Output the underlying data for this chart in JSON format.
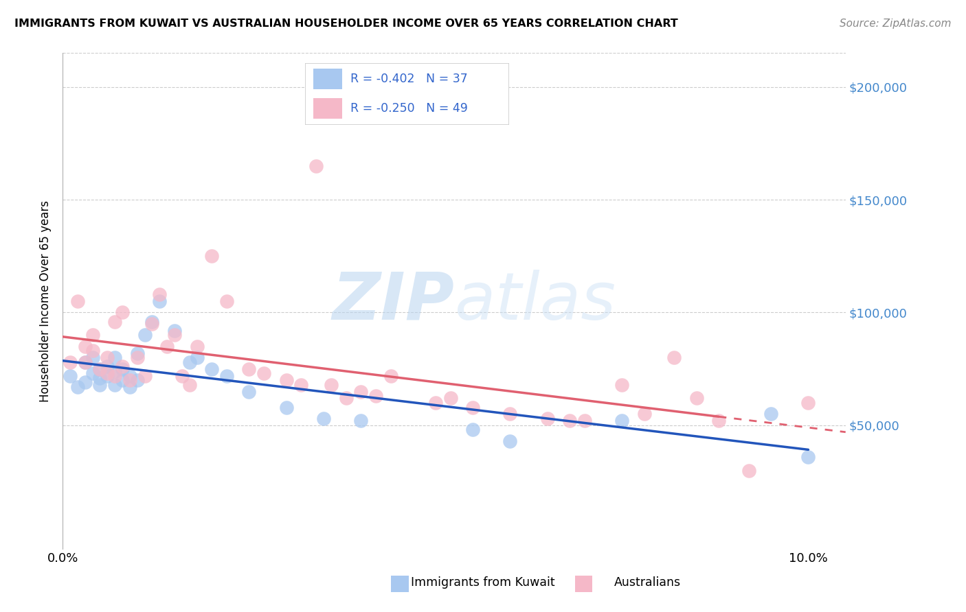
{
  "title": "IMMIGRANTS FROM KUWAIT VS AUSTRALIAN HOUSEHOLDER INCOME OVER 65 YEARS CORRELATION CHART",
  "source": "Source: ZipAtlas.com",
  "ylabel": "Householder Income Over 65 years",
  "xlim": [
    0.0,
    0.105
  ],
  "ylim": [
    -5000,
    215000
  ],
  "yticks": [
    0,
    50000,
    100000,
    150000,
    200000
  ],
  "xticks": [
    0.0,
    0.02,
    0.04,
    0.06,
    0.08,
    0.1
  ],
  "blue_color": "#A8C8F0",
  "pink_color": "#F5B8C8",
  "blue_line_color": "#2255BB",
  "pink_line_color": "#E06070",
  "blue_R": -0.402,
  "blue_N": 37,
  "pink_R": -0.25,
  "pink_N": 49,
  "legend_text_color": "#3366CC",
  "watermark_color": "#C8DFF5",
  "blue_scatter_x": [
    0.001,
    0.002,
    0.003,
    0.003,
    0.004,
    0.004,
    0.005,
    0.005,
    0.005,
    0.006,
    0.006,
    0.007,
    0.007,
    0.007,
    0.008,
    0.008,
    0.009,
    0.009,
    0.01,
    0.01,
    0.011,
    0.012,
    0.013,
    0.015,
    0.017,
    0.018,
    0.02,
    0.022,
    0.025,
    0.03,
    0.035,
    0.04,
    0.055,
    0.06,
    0.075,
    0.095,
    0.1
  ],
  "blue_scatter_y": [
    72000,
    67000,
    78000,
    69000,
    80000,
    73000,
    75000,
    71000,
    68000,
    76000,
    72000,
    80000,
    74000,
    68000,
    75000,
    70000,
    72000,
    67000,
    82000,
    70000,
    90000,
    96000,
    105000,
    92000,
    78000,
    80000,
    75000,
    72000,
    65000,
    58000,
    53000,
    52000,
    48000,
    43000,
    52000,
    55000,
    36000
  ],
  "pink_scatter_x": [
    0.001,
    0.002,
    0.003,
    0.003,
    0.004,
    0.004,
    0.005,
    0.006,
    0.006,
    0.007,
    0.007,
    0.008,
    0.008,
    0.009,
    0.01,
    0.011,
    0.012,
    0.013,
    0.014,
    0.015,
    0.016,
    0.017,
    0.018,
    0.02,
    0.022,
    0.025,
    0.027,
    0.03,
    0.032,
    0.034,
    0.036,
    0.038,
    0.04,
    0.042,
    0.044,
    0.05,
    0.052,
    0.055,
    0.06,
    0.065,
    0.068,
    0.07,
    0.075,
    0.078,
    0.082,
    0.085,
    0.088,
    0.092,
    0.1
  ],
  "pink_scatter_y": [
    78000,
    105000,
    85000,
    78000,
    90000,
    83000,
    75000,
    80000,
    73000,
    96000,
    72000,
    100000,
    76000,
    70000,
    80000,
    72000,
    95000,
    108000,
    85000,
    90000,
    72000,
    68000,
    85000,
    125000,
    105000,
    75000,
    73000,
    70000,
    68000,
    165000,
    68000,
    62000,
    65000,
    63000,
    72000,
    60000,
    62000,
    58000,
    55000,
    53000,
    52000,
    52000,
    68000,
    55000,
    80000,
    62000,
    52000,
    30000,
    60000
  ]
}
